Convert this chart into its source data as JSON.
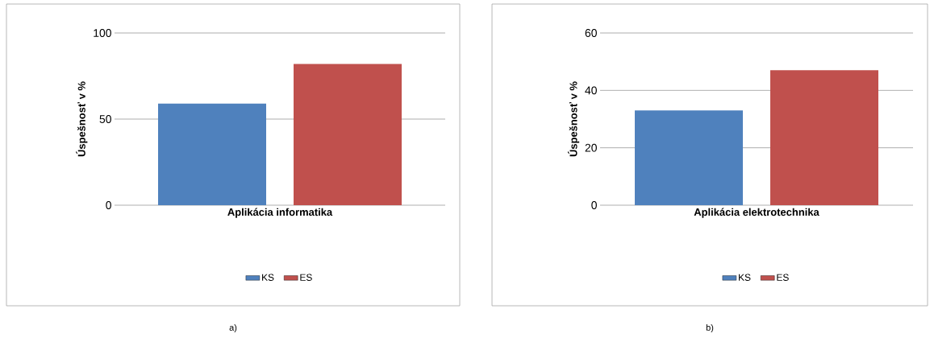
{
  "chart_data": [
    {
      "type": "bar",
      "categories": [
        "Aplikácia informatika"
      ],
      "ylabel": "Úspešnosť v %",
      "ylim": [
        0,
        100
      ],
      "yticks": [
        0,
        50,
        100
      ],
      "grid": "y",
      "legend": "bottom",
      "annotations": [
        "a)"
      ],
      "series": [
        {
          "name": "KS",
          "color": "#4f81bd",
          "values": [
            59
          ]
        },
        {
          "name": "ES",
          "color": "#c0504d",
          "values": [
            82
          ]
        }
      ]
    },
    {
      "type": "bar",
      "categories": [
        "Aplikácia elektrotechnika"
      ],
      "ylabel": "Úspešnosť v %",
      "ylim": [
        0,
        60
      ],
      "yticks": [
        0,
        20,
        40,
        60
      ],
      "grid": "y",
      "legend": "bottom",
      "annotations": [
        "b)"
      ],
      "series": [
        {
          "name": "KS",
          "color": "#4f81bd",
          "values": [
            33
          ]
        },
        {
          "name": "ES",
          "color": "#c0504d",
          "values": [
            47
          ]
        }
      ]
    }
  ]
}
